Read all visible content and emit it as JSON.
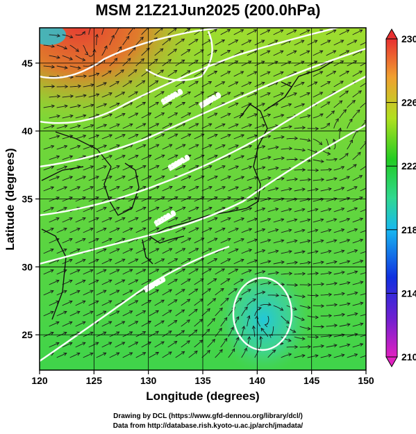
{
  "title": "MSM 21Z21Jun2025 (200.0hPa)",
  "map": {
    "lon_range": [
      120,
      150
    ],
    "lat_range": [
      22.4,
      47.6
    ],
    "x_ticks": [
      "120",
      "125",
      "130",
      "135",
      "140",
      "145",
      "150"
    ],
    "y_ticks": [
      "25",
      "30",
      "35",
      "40",
      "45"
    ],
    "xlabel": "Longitude (degrees)",
    "ylabel": "Latitude  (degrees)",
    "contour_labels": [
      "12360.0",
      "12280.0",
      "12200.0",
      "12120.0",
      "12040.0"
    ],
    "field_colors": {
      "cold": "#22c7d8",
      "cool": "#45d35a",
      "mid": "#3fd44a",
      "warm": "#9fdc2e",
      "hot": "#e8552b",
      "hottest": "#e63b33"
    }
  },
  "colorbar": {
    "ticks": [
      "230",
      "226",
      "222",
      "218",
      "214",
      "210"
    ],
    "min": 210,
    "max": 230
  },
  "footer": {
    "line1": "Drawing by DCL (https://www.gfd-dennou.org/library/dcl/)",
    "line2": "Data from http://database.rish.kyoto-u.ac.jp/arch/jmadata/"
  }
}
